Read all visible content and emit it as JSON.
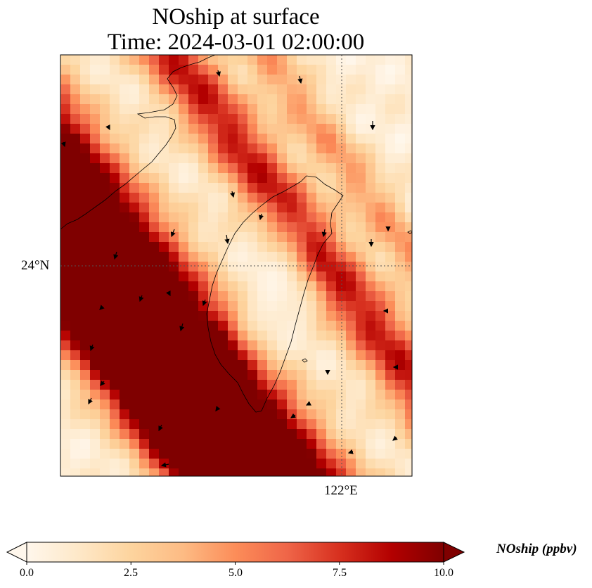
{
  "title": {
    "line1": "NOship at surface",
    "line2": "Time: 2024-03-01 02:00:00"
  },
  "map": {
    "variable": "NOship",
    "level": "surface",
    "colormap": "OrRd",
    "gridlines": "dotted",
    "lat_labels": [
      "24°N"
    ],
    "lon_labels": [
      "122°E"
    ],
    "features": [
      "coastlines",
      "wind-vectors"
    ]
  },
  "colorbar": {
    "label": "NOship (ppbv)",
    "min": 0.0,
    "max": 10.0,
    "extend": "both",
    "ticks": [
      "0.0",
      "2.5",
      "5.0",
      "7.5",
      "10.0"
    ],
    "colors": [
      "#fff7ec",
      "#fee8c8",
      "#fdd49e",
      "#fdbb84",
      "#fc8d59",
      "#ef6548",
      "#d7301f",
      "#b30000",
      "#7f0000"
    ]
  }
}
